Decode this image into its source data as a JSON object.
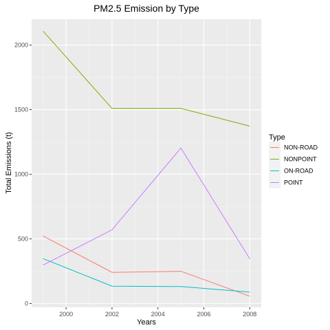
{
  "chart_data": {
    "type": "line",
    "title": "PM2.5 Emission by Type",
    "xlabel": "Years",
    "ylabel": "Total Emissions (t)",
    "x": [
      1999,
      2002,
      2005,
      2008
    ],
    "xlim": [
      1998.5,
      2008.5
    ],
    "ylim": [
      -30,
      2200
    ],
    "x_ticks": [
      2000,
      2002,
      2004,
      2006,
      2008
    ],
    "x_tick_labels": [
      "2000",
      "2002",
      "2004",
      "2006",
      "2008"
    ],
    "y_ticks": [
      0,
      500,
      1000,
      1500,
      2000
    ],
    "y_tick_labels": [
      "0",
      "500",
      "1000",
      "1500",
      "2000"
    ],
    "legend_title": "Type",
    "legend_position": "right",
    "grid": true,
    "series": [
      {
        "name": "NON-ROAD",
        "color": "#F8766D",
        "values": [
          522,
          241,
          249,
          56
        ]
      },
      {
        "name": "NONPOINT",
        "color": "#7CAE00",
        "values": [
          2108,
          1510,
          1510,
          1373
        ]
      },
      {
        "name": "ON-ROAD",
        "color": "#00BFC4",
        "values": [
          347,
          134,
          131,
          88
        ]
      },
      {
        "name": "POINT",
        "color": "#C77CFF",
        "values": [
          297,
          570,
          1203,
          345
        ]
      }
    ]
  }
}
